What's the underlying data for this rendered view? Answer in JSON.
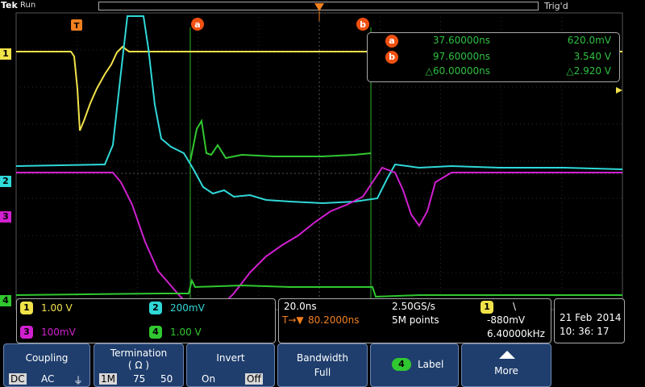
{
  "header": {
    "brand": "Tek",
    "run_status": "Run",
    "trigger_status": "Trig'd"
  },
  "cursors": {
    "a_label": "a",
    "b_label": "b",
    "trigger_label": "T"
  },
  "measurements": [
    {
      "cursor": "a",
      "time": "37.60000ns",
      "value": "620.0mV"
    },
    {
      "cursor": "b",
      "time": "97.60000ns",
      "value": "3.540 V"
    },
    {
      "cursor": "",
      "time": "△60.00000ns",
      "value": "△2.920 V"
    }
  ],
  "channels": [
    {
      "num": "1",
      "scale": "1.00 V",
      "color": "#f2e24a"
    },
    {
      "num": "2",
      "scale": "200mV",
      "color": "#30d8d8"
    },
    {
      "num": "3",
      "scale": "100mV",
      "color": "#d020d0"
    },
    {
      "num": "4",
      "scale": "1.00 V",
      "color": "#30c830"
    }
  ],
  "timebase": {
    "time_div": "20.0ns",
    "sample_rate": "2.50GS/s",
    "trigger_source": "1",
    "trigger_slope": "\\",
    "trigger_pos": "80.2000ns",
    "record_length": "5M points",
    "trigger_level": "-880mV",
    "frequency": "6.40000kHz"
  },
  "datetime": {
    "date": "21 Feb",
    "year": "2014",
    "time": "10: 36: 17"
  },
  "menu": {
    "coupling": {
      "title": "Coupling",
      "options": [
        "DC",
        "AC",
        "⏚"
      ]
    },
    "termination": {
      "title": "Termination",
      "subtitle": "( Ω )",
      "options": [
        "1M",
        "75",
        "50"
      ]
    },
    "invert": {
      "title": "Invert",
      "options": [
        "On",
        "Off"
      ]
    },
    "bandwidth": {
      "title": "Bandwidth",
      "value": "Full"
    },
    "label": {
      "channel": "4",
      "title": "Label"
    },
    "more": {
      "title": "More"
    }
  }
}
